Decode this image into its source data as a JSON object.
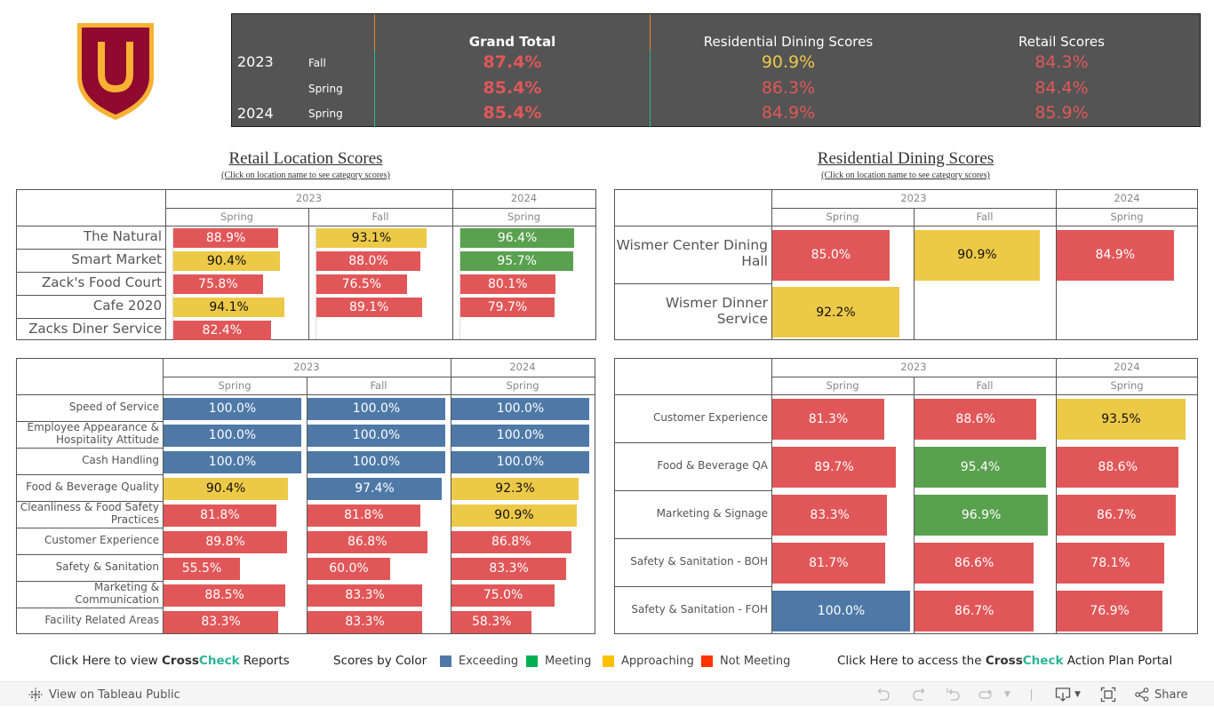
{
  "logo": {
    "letter": "U",
    "shield_color": "#8f0a2e",
    "accent_color": "#f8b133"
  },
  "summary": {
    "headers": {
      "grand_total": "Grand Total",
      "residential": "Residential Dining Scores",
      "retail": "Retail Scores"
    },
    "rows": [
      {
        "year": "2023",
        "semester": "Fall",
        "grand_total": "87.4%",
        "residential": "90.9%",
        "retail": "84.3%",
        "grand_total_status": "not_meeting",
        "residential_status": "approaching",
        "retail_status": "not_meeting"
      },
      {
        "year": "",
        "semester": "Spring",
        "grand_total": "85.4%",
        "residential": "86.3%",
        "retail": "84.4%",
        "grand_total_status": "not_meeting",
        "residential_status": "not_meeting",
        "retail_status": "not_meeting"
      },
      {
        "year": "2024",
        "semester": "Spring",
        "grand_total": "85.4%",
        "residential": "84.9%",
        "retail": "85.9%",
        "grand_total_status": "not_meeting",
        "residential_status": "not_meeting",
        "retail_status": "not_meeting"
      }
    ]
  },
  "colors": {
    "exceeding": "#4e79a7",
    "meeting": "#59a14f",
    "approaching": "#edc948",
    "not_meeting": "#e15759",
    "summary_red": "#e15759",
    "summary_yellow": "#edc948",
    "legend_exceeding": "#4e79a7",
    "legend_meeting": "#00b050",
    "legend_approaching": "#ffc000",
    "legend_not_meeting": "#ff3300"
  },
  "retail_section": {
    "title": "Retail Location Scores",
    "subtitle": "(Click on location name to see category scores)"
  },
  "residential_section": {
    "title": "Residential Dining Scores",
    "subtitle": "(Click on location name to see category scores)"
  },
  "chart_data": [
    {
      "id": "retail-locations",
      "type": "bar",
      "title": "Retail Location Scores",
      "column_groups": [
        {
          "year": "2023",
          "semesters": [
            "Spring",
            "Fall"
          ]
        },
        {
          "year": "2024",
          "semesters": [
            "Spring"
          ]
        }
      ],
      "columns": [
        "2023 Spring",
        "2023 Fall",
        "2024 Spring"
      ],
      "categories": [
        "The Natural",
        "Smart Market",
        "Zack's Food Court",
        "Cafe 2020",
        "Zacks Diner Service"
      ],
      "series": [
        {
          "name": "2023 Spring",
          "values": [
            88.9,
            90.4,
            75.8,
            94.1,
            82.4
          ],
          "status": [
            "not_meeting",
            "approaching",
            "not_meeting",
            "approaching",
            "not_meeting"
          ]
        },
        {
          "name": "2023 Fall",
          "values": [
            93.1,
            88.0,
            76.5,
            89.1,
            null
          ],
          "status": [
            "approaching",
            "not_meeting",
            "not_meeting",
            "not_meeting",
            null
          ]
        },
        {
          "name": "2024 Spring",
          "values": [
            96.4,
            95.7,
            80.1,
            79.7,
            null
          ],
          "status": [
            "meeting",
            "meeting",
            "not_meeting",
            "not_meeting",
            null
          ]
        }
      ],
      "xlim": [
        0,
        100
      ]
    },
    {
      "id": "residential-locations",
      "type": "bar",
      "title": "Residential Dining Scores",
      "column_groups": [
        {
          "year": "2023",
          "semesters": [
            "Spring",
            "Fall"
          ]
        },
        {
          "year": "2024",
          "semesters": [
            "Spring"
          ]
        }
      ],
      "columns": [
        "2023 Spring",
        "2023 Fall",
        "2024 Spring"
      ],
      "categories": [
        "Wismer Center Dining Hall",
        "Wismer Dinner Service"
      ],
      "series": [
        {
          "name": "2023 Spring",
          "values": [
            85.0,
            92.2
          ],
          "status": [
            "not_meeting",
            "approaching"
          ]
        },
        {
          "name": "2023 Fall",
          "values": [
            90.9,
            null
          ],
          "status": [
            "approaching",
            null
          ]
        },
        {
          "name": "2024 Spring",
          "values": [
            84.9,
            null
          ],
          "status": [
            "not_meeting",
            null
          ]
        }
      ],
      "xlim": [
        0,
        100
      ]
    },
    {
      "id": "retail-categories",
      "type": "bar",
      "column_groups": [
        {
          "year": "2023",
          "semesters": [
            "Spring",
            "Fall"
          ]
        },
        {
          "year": "2024",
          "semesters": [
            "Spring"
          ]
        }
      ],
      "columns": [
        "2023 Spring",
        "2023 Fall",
        "2024 Spring"
      ],
      "categories": [
        "Speed of Service",
        "Employee Appearance & Hospitality Attitude",
        "Cash Handling",
        "Food & Beverage Quality",
        "Cleanliness & Food Safety Practices",
        "Customer Experience",
        "Safety & Sanitation",
        "Marketing & Communication",
        "Facility Related Areas"
      ],
      "series": [
        {
          "name": "2023 Spring",
          "values": [
            100.0,
            100.0,
            100.0,
            90.4,
            81.8,
            89.8,
            55.5,
            88.5,
            83.3
          ],
          "status": [
            "exceeding",
            "exceeding",
            "exceeding",
            "approaching",
            "not_meeting",
            "not_meeting",
            "not_meeting",
            "not_meeting",
            "not_meeting"
          ]
        },
        {
          "name": "2023 Fall",
          "values": [
            100.0,
            100.0,
            100.0,
            97.4,
            81.8,
            86.8,
            60.0,
            83.3,
            83.3
          ],
          "status": [
            "exceeding",
            "exceeding",
            "exceeding",
            "exceeding",
            "not_meeting",
            "not_meeting",
            "not_meeting",
            "not_meeting",
            "not_meeting"
          ]
        },
        {
          "name": "2024 Spring",
          "values": [
            100.0,
            100.0,
            100.0,
            92.3,
            90.9,
            86.8,
            83.3,
            75.0,
            58.3
          ],
          "status": [
            "exceeding",
            "exceeding",
            "exceeding",
            "approaching",
            "approaching",
            "not_meeting",
            "not_meeting",
            "not_meeting",
            "not_meeting"
          ]
        }
      ],
      "xlim": [
        0,
        100
      ]
    },
    {
      "id": "residential-categories",
      "type": "bar",
      "column_groups": [
        {
          "year": "2023",
          "semesters": [
            "Spring",
            "Fall"
          ]
        },
        {
          "year": "2024",
          "semesters": [
            "Spring"
          ]
        }
      ],
      "columns": [
        "2023 Spring",
        "2023 Fall",
        "2024 Spring"
      ],
      "categories": [
        "Customer Experience",
        "Food & Beverage QA",
        "Marketing & Signage",
        "Safety & Sanitation - BOH",
        "Safety & Sanitation - FOH"
      ],
      "series": [
        {
          "name": "2023 Spring",
          "values": [
            81.3,
            89.7,
            83.3,
            81.7,
            100.0
          ],
          "status": [
            "not_meeting",
            "not_meeting",
            "not_meeting",
            "not_meeting",
            "exceeding"
          ]
        },
        {
          "name": "2023 Fall",
          "values": [
            88.6,
            95.4,
            96.9,
            86.6,
            86.7
          ],
          "status": [
            "not_meeting",
            "meeting",
            "meeting",
            "not_meeting",
            "not_meeting"
          ]
        },
        {
          "name": "2024 Spring",
          "values": [
            93.5,
            88.6,
            86.7,
            78.1,
            76.9
          ],
          "status": [
            "approaching",
            "not_meeting",
            "not_meeting",
            "not_meeting",
            "not_meeting"
          ]
        }
      ],
      "xlim": [
        0,
        100
      ]
    }
  ],
  "footer": {
    "reports_link": {
      "prefix": "Click Here to view ",
      "brand_a": "Cross",
      "brand_b": "Check",
      "suffix": " Reports"
    },
    "legend_title": "Scores by Color",
    "legend": [
      {
        "label": "Exceeding",
        "key": "legend_exceeding"
      },
      {
        "label": "Meeting",
        "key": "legend_meeting"
      },
      {
        "label": "Approaching",
        "key": "legend_approaching"
      },
      {
        "label": "Not Meeting",
        "key": "legend_not_meeting"
      }
    ],
    "portal_link": {
      "prefix": "Click Here to access the ",
      "brand_a": "Cross",
      "brand_b": "Check",
      "suffix": " Action Plan Portal"
    }
  },
  "toolbar": {
    "view_on_tableau": "View on Tableau Public",
    "share": "Share",
    "icons": [
      "undo-icon",
      "redo-icon",
      "revert-icon",
      "refresh-icon",
      "download-icon",
      "fullscreen-icon",
      "share-icon"
    ]
  }
}
